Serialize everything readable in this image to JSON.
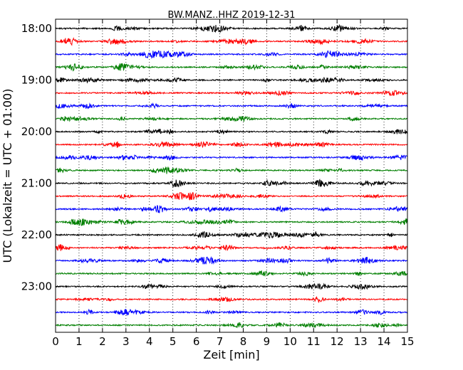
{
  "chart_data": {
    "type": "line",
    "title": "BW.MANZ..HHZ 2019-12-31",
    "xlabel": "Zeit  [min]",
    "ylabel": "UTC (Lokalzeit = UTC + 01:00)",
    "xlim": [
      0,
      15
    ],
    "xticks": [
      "0",
      "1",
      "2",
      "3",
      "4",
      "5",
      "6",
      "7",
      "8",
      "9",
      "10",
      "11",
      "12",
      "13",
      "14",
      "15"
    ],
    "yticks": [
      {
        "label": "18:00",
        "row": 0
      },
      {
        "label": "19:00",
        "row": 4
      },
      {
        "label": "20:00",
        "row": 8
      },
      {
        "label": "21:00",
        "row": 12
      },
      {
        "label": "22:00",
        "row": 16
      },
      {
        "label": "23:00",
        "row": 20
      }
    ],
    "row_count": 24,
    "trace_duration_min": 15,
    "color_cycle": [
      "#000000",
      "#ff0000",
      "#0000ff",
      "#007f00"
    ],
    "grid": {
      "vertical": true,
      "style": "dotted"
    }
  }
}
